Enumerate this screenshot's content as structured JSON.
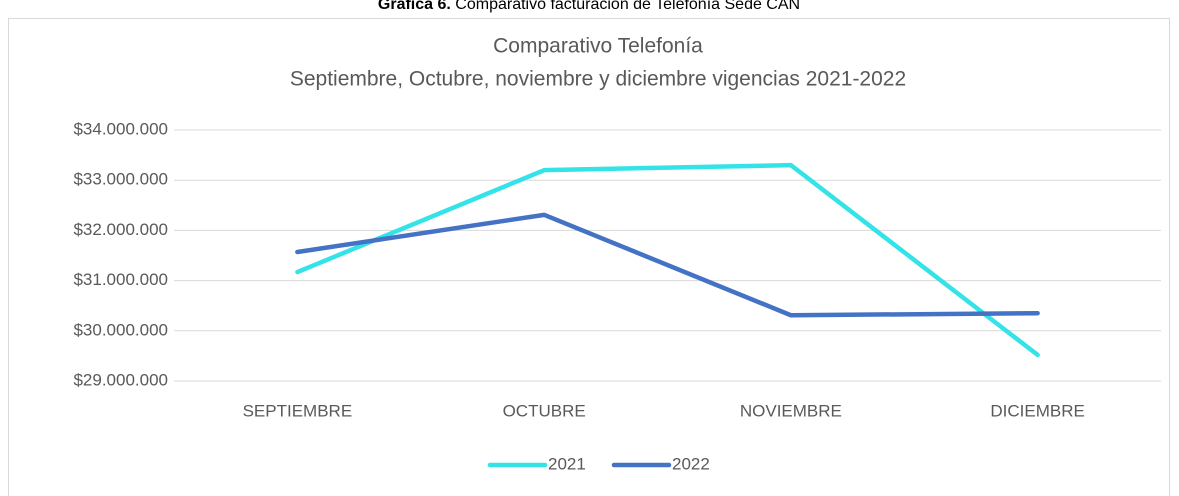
{
  "caption": {
    "label": "Gráfica 6.",
    "text": "Comparativo facturación de Telefonía Sede CAN"
  },
  "chart_data": {
    "type": "line",
    "title": "Comparativo Telefonía",
    "subtitle": "Septiembre, Octubre, noviembre y diciembre vigencias 2021-2022",
    "categories": [
      "SEPTIEMBRE",
      "OCTUBRE",
      "NOVIEMBRE",
      "DICIEMBRE"
    ],
    "series": [
      {
        "name": "2021",
        "color": "#33e3e8",
        "values": [
          31170000,
          33200000,
          33300000,
          29520000
        ]
      },
      {
        "name": "2022",
        "color": "#4472c4",
        "values": [
          31570000,
          32310000,
          30310000,
          30350000
        ]
      }
    ],
    "ylim": [
      29000000,
      34000000
    ],
    "yticks": [
      {
        "value": 29000000,
        "label": "$29.000.000"
      },
      {
        "value": 30000000,
        "label": "$30.000.000"
      },
      {
        "value": 31000000,
        "label": "$31.000.000"
      },
      {
        "value": 32000000,
        "label": "$32.000.000"
      },
      {
        "value": 33000000,
        "label": "$33.000.000"
      },
      {
        "value": 34000000,
        "label": "$34.000.000"
      }
    ],
    "grid": true,
    "legend": "bottom"
  }
}
